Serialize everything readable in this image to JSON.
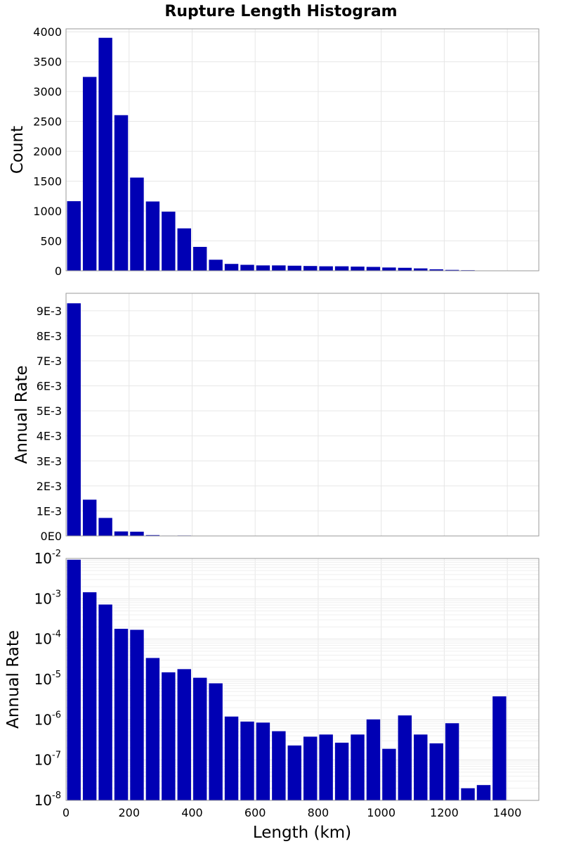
{
  "title": "Rupture Length Histogram",
  "xlabel": "Length (km)",
  "x_ticks": [
    "0",
    "200",
    "400",
    "600",
    "800",
    "1000",
    "1200",
    "1400"
  ],
  "bar_color": "#0000b4",
  "chart_data": [
    {
      "type": "bar",
      "title": "Rupture Length Histogram",
      "xlabel": "",
      "ylabel": "Count",
      "xlim": [
        0,
        1500
      ],
      "ylim": [
        0,
        4050
      ],
      "bin_width": 50,
      "bin_starts": [
        0,
        50,
        100,
        150,
        200,
        250,
        300,
        350,
        400,
        450,
        500,
        550,
        600,
        650,
        700,
        750,
        800,
        850,
        900,
        950,
        1000,
        1050,
        1100,
        1150,
        1200,
        1250,
        1300,
        1350,
        1400,
        1450
      ],
      "values": [
        1165,
        3245,
        3900,
        2605,
        1560,
        1160,
        990,
        710,
        400,
        185,
        115,
        100,
        90,
        90,
        85,
        80,
        75,
        75,
        70,
        65,
        55,
        50,
        40,
        25,
        15,
        10,
        5,
        5,
        0,
        0
      ],
      "y_ticks": [
        0,
        500,
        1000,
        1500,
        2000,
        2500,
        3000,
        3500,
        4000
      ],
      "y_tick_labels": [
        "0",
        "500",
        "1000",
        "1500",
        "2000",
        "2500",
        "3000",
        "3500",
        "4000"
      ],
      "grid": true
    },
    {
      "type": "bar",
      "xlabel": "",
      "ylabel": "Annual Rate",
      "xlim": [
        0,
        1500
      ],
      "ylim": [
        0,
        0.0097
      ],
      "bin_width": 50,
      "bin_starts": [
        0,
        50,
        100,
        150,
        200,
        250,
        300,
        350,
        400,
        450,
        500,
        550,
        600,
        650,
        700,
        750,
        800,
        850,
        900,
        950,
        1000,
        1050,
        1100,
        1150,
        1200,
        1250,
        1300,
        1350,
        1400,
        1450
      ],
      "values": [
        0.0093,
        0.00145,
        0.00072,
        0.00018,
        0.00017,
        3.4e-05,
        1.5e-05,
        1.8e-05,
        1.1e-05,
        8e-06,
        1.2e-06,
        9e-07,
        8.5e-07,
        5.2e-07,
        2.3e-07,
        3.8e-07,
        4.3e-07,
        2.7e-07,
        4.3e-07,
        1.02e-06,
        1.9e-07,
        1.28e-06,
        4.3e-07,
        2.6e-07,
        8.2e-07,
        2e-08,
        2.4e-08,
        3.8e-06,
        0,
        0
      ],
      "y_ticks": [
        0,
        0.001,
        0.002,
        0.003,
        0.004,
        0.005,
        0.006,
        0.007,
        0.008,
        0.009
      ],
      "y_tick_labels": [
        "0E0",
        "1E-3",
        "2E-3",
        "3E-3",
        "4E-3",
        "5E-3",
        "6E-3",
        "7E-3",
        "8E-3",
        "9E-3"
      ],
      "grid": true
    },
    {
      "type": "bar",
      "xlabel": "Length (km)",
      "ylabel": "Annual Rate",
      "scale_y": "log",
      "xlim": [
        0,
        1500
      ],
      "ylim": [
        1e-08,
        0.01
      ],
      "bin_width": 50,
      "bin_starts": [
        0,
        50,
        100,
        150,
        200,
        250,
        300,
        350,
        400,
        450,
        500,
        550,
        600,
        650,
        700,
        750,
        800,
        850,
        900,
        950,
        1000,
        1050,
        1100,
        1150,
        1200,
        1250,
        1300,
        1350,
        1400,
        1450
      ],
      "values": [
        0.0093,
        0.00145,
        0.00072,
        0.00018,
        0.00017,
        3.4e-05,
        1.5e-05,
        1.8e-05,
        1.1e-05,
        8e-06,
        1.2e-06,
        9e-07,
        8.5e-07,
        5.2e-07,
        2.3e-07,
        3.8e-07,
        4.3e-07,
        2.7e-07,
        4.3e-07,
        1.02e-06,
        1.9e-07,
        1.28e-06,
        4.3e-07,
        2.6e-07,
        8.2e-07,
        2e-08,
        2.4e-08,
        3.8e-06,
        0,
        0
      ],
      "y_tick_bases": [
        "10",
        "10",
        "10",
        "10",
        "10",
        "10",
        "10"
      ],
      "y_tick_exponents": [
        "-2",
        "-3",
        "-4",
        "-5",
        "-6",
        "-7",
        "-8"
      ],
      "y_tick_powers": [
        -2,
        -3,
        -4,
        -5,
        -6,
        -7,
        -8
      ],
      "x_tick_labels": [
        "0",
        "200",
        "400",
        "600",
        "800",
        "1000",
        "1200",
        "1400"
      ],
      "grid": true
    }
  ]
}
